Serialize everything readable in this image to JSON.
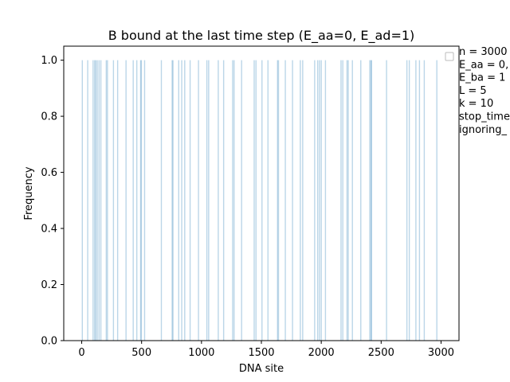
{
  "chart_data": {
    "type": "bar",
    "title": "B bound at the last time step (E_aa=0, E_ad=1)",
    "xlabel": "DNA site",
    "ylabel": "Frequency",
    "xlim": [
      -150,
      3150
    ],
    "ylim": [
      0,
      1.05
    ],
    "xticks": [
      "0",
      "500",
      "1000",
      "1500",
      "2000",
      "2500",
      "3000"
    ],
    "yticks": [
      "0.0",
      "0.2",
      "0.4",
      "0.6",
      "0.8",
      "1.0"
    ],
    "bar_color": "#1f77b4",
    "bar_alpha": 0.3,
    "x": [
      5,
      50,
      95,
      108,
      118,
      130,
      145,
      160,
      205,
      215,
      265,
      300,
      370,
      430,
      460,
      492,
      498,
      525,
      665,
      755,
      762,
      810,
      835,
      860,
      905,
      975,
      1045,
      1060,
      1140,
      1185,
      1260,
      1272,
      1335,
      1440,
      1455,
      1505,
      1555,
      1635,
      1643,
      1700,
      1760,
      1825,
      1845,
      1945,
      1970,
      1985,
      2000,
      2035,
      2165,
      2180,
      2215,
      2225,
      2260,
      2330,
      2405,
      2415,
      2420,
      2545,
      2715,
      2735,
      2790,
      2820,
      2860,
      2965
    ],
    "values": [
      1,
      1,
      1,
      1,
      1,
      1,
      1,
      1,
      1,
      1,
      1,
      1,
      1,
      1,
      1,
      1,
      1,
      1,
      1,
      1,
      1,
      1,
      1,
      1,
      1,
      1,
      1,
      1,
      1,
      1,
      1,
      1,
      1,
      1,
      1,
      1,
      1,
      1,
      1,
      1,
      1,
      1,
      1,
      1,
      1,
      1,
      1,
      1,
      1,
      1,
      1,
      1,
      1,
      1,
      1,
      1,
      1,
      1,
      1,
      1,
      1,
      1,
      1,
      1
    ],
    "grid": false,
    "legend": {
      "placement": "top-right",
      "entries": [
        "n = 3000",
        "E_aa = 0,",
        "E_ba = 1",
        "L = 5",
        "k = 10",
        "stop_time",
        "ignoring_"
      ]
    }
  }
}
